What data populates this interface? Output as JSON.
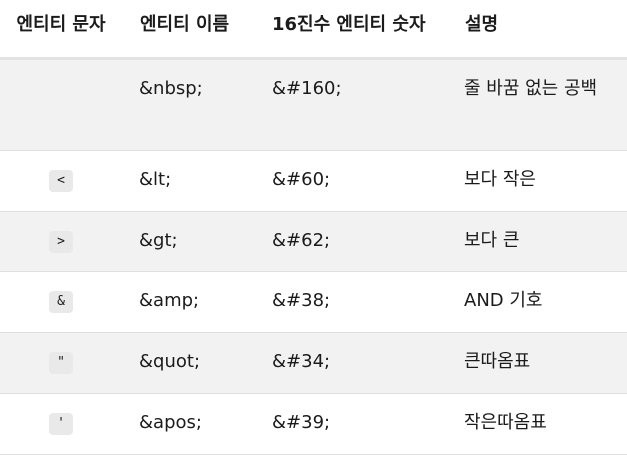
{
  "table": {
    "headers": {
      "char": "엔티티 문자",
      "name": "엔티티 이름",
      "hex": "16진수 엔티티 숫자",
      "desc": "설명"
    },
    "rows": [
      {
        "char": "",
        "name": "&nbsp;",
        "hex": "&#160;",
        "desc": "줄 바꿈 없는 공백"
      },
      {
        "char": "<",
        "name": "&lt;",
        "hex": "&#60;",
        "desc": "보다 작은"
      },
      {
        "char": ">",
        "name": "&gt;",
        "hex": "&#62;",
        "desc": "보다 큰"
      },
      {
        "char": "&",
        "name": "&amp;",
        "hex": "&#38;",
        "desc": "AND 기호"
      },
      {
        "char": "\"",
        "name": "&quot;",
        "hex": "&#34;",
        "desc": "큰따옴표"
      },
      {
        "char": "'",
        "name": "&apos;",
        "hex": "&#39;",
        "desc": "작은따옴표"
      }
    ]
  }
}
